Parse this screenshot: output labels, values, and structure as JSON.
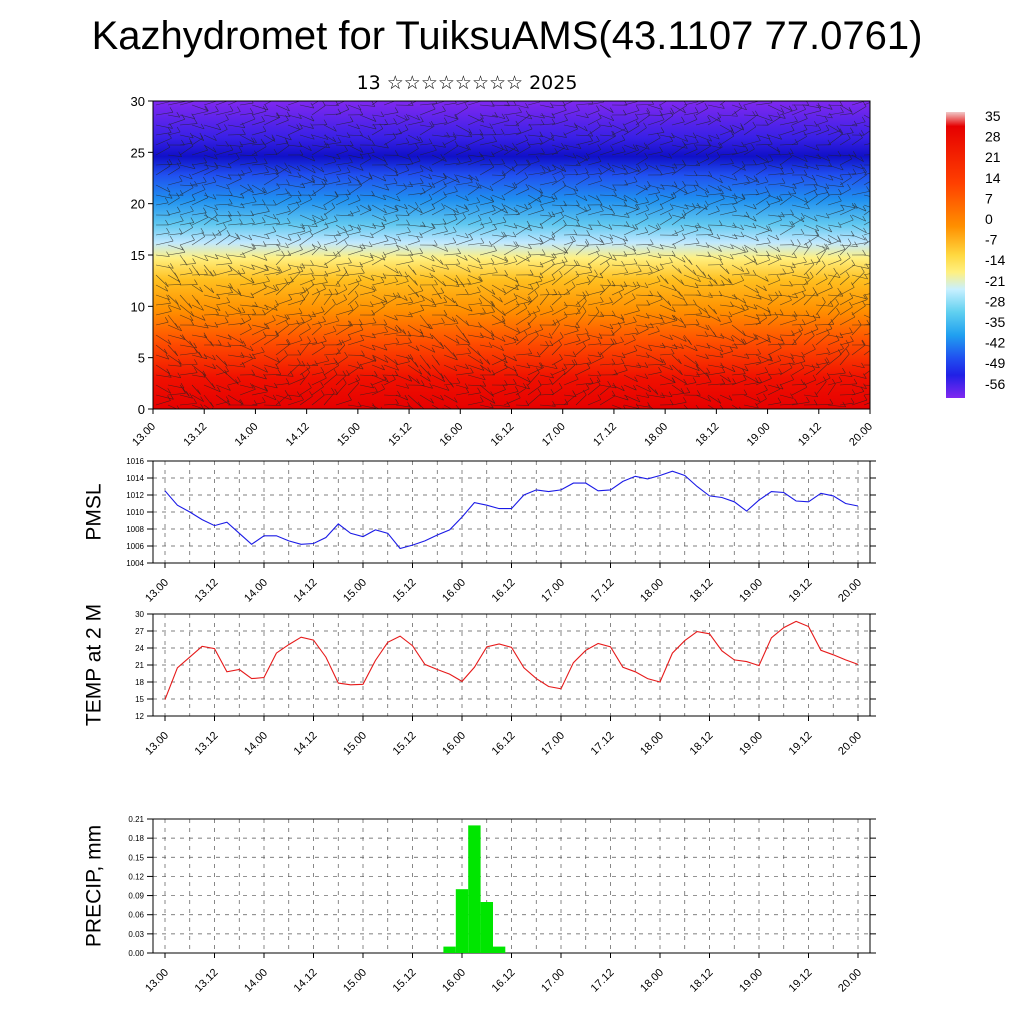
{
  "title": "Kazhydromet for TuiksuAMS(43.1107 77.0761)",
  "subtitle": "13 ☆☆☆☆☆☆☆☆ 2025",
  "time_labels": [
    "13.00",
    "13.12",
    "14.00",
    "14.12",
    "15.00",
    "15.12",
    "16.00",
    "16.12",
    "17.00",
    "17.12",
    "18.00",
    "18.12",
    "19.00",
    "19.12",
    "20.00"
  ],
  "colors": {
    "pmsl_line": "#1a1ae6",
    "temp_line": "#e61a1a",
    "precip_bar": "#00e600",
    "grid": "#555555"
  },
  "colorbar": {
    "labels": [
      "35",
      "28",
      "21",
      "14",
      "7",
      "0",
      "-7",
      "-14",
      "-21",
      "-28",
      "-35",
      "-42",
      "-49",
      "-56"
    ],
    "stops": [
      "#f0c8c8",
      "#e60000",
      "#ff4000",
      "#ff8000",
      "#ffb000",
      "#ffd840",
      "#fff080",
      "#c8f0ff",
      "#60d0f0",
      "#20a0f0",
      "#2060f0",
      "#2020e6",
      "#4020f0",
      "#8028f0"
    ]
  },
  "chart_data": [
    {
      "type": "heatmap",
      "ylim": [
        0,
        30
      ],
      "y_ticks": [
        0,
        5,
        10,
        15,
        20,
        25,
        30
      ],
      "x": [
        "13.00",
        "13.12",
        "14.00",
        "14.12",
        "15.00",
        "15.12",
        "16.00",
        "16.12",
        "17.00",
        "17.12",
        "18.00",
        "18.12",
        "19.00",
        "19.12",
        "20.00"
      ]
    },
    {
      "type": "line",
      "ylabel": "PMSL",
      "ylim": [
        1004,
        1016
      ],
      "y_ticks": [
        1004,
        1006,
        1008,
        1010,
        1012,
        1014,
        1016
      ],
      "x": [
        0,
        3,
        6,
        9,
        12,
        15,
        18,
        21,
        24,
        27,
        30,
        33,
        36,
        39,
        42,
        45,
        48,
        51,
        54,
        57,
        60,
        63,
        66,
        69,
        72,
        75,
        78,
        81,
        84,
        87,
        90,
        93,
        96,
        99,
        102,
        105,
        108,
        111,
        114,
        117,
        120,
        123,
        126,
        129,
        132,
        135,
        138,
        141,
        144,
        147,
        150,
        153,
        156,
        159,
        162,
        165,
        168
      ],
      "values": [
        1012.5,
        1010.8,
        1010.0,
        1009.1,
        1008.4,
        1008.8,
        1007.5,
        1006.2,
        1007.2,
        1007.2,
        1006.6,
        1006.2,
        1006.3,
        1007.0,
        1008.6,
        1007.5,
        1007.1,
        1007.9,
        1007.5,
        1005.7,
        1006.1,
        1006.6,
        1007.3,
        1007.9,
        1009.4,
        1011.1,
        1010.8,
        1010.4,
        1010.4,
        1012.0,
        1012.6,
        1012.4,
        1012.6,
        1013.4,
        1013.4,
        1012.5,
        1012.6,
        1013.6,
        1014.2,
        1013.9,
        1014.3,
        1014.8,
        1014.3,
        1013.0,
        1011.9,
        1011.7,
        1011.2,
        1010.1,
        1011.4,
        1012.4,
        1012.3,
        1011.3,
        1011.2,
        1012.2,
        1011.9,
        1011.0,
        1010.7
      ]
    },
    {
      "type": "line",
      "ylabel": "TEMP at 2 M",
      "ylim": [
        12,
        30
      ],
      "y_ticks": [
        12,
        15,
        18,
        21,
        24,
        27,
        30
      ],
      "x": [
        0,
        3,
        6,
        9,
        12,
        15,
        18,
        21,
        24,
        27,
        30,
        33,
        36,
        39,
        42,
        45,
        48,
        51,
        54,
        57,
        60,
        63,
        66,
        69,
        72,
        75,
        78,
        81,
        84,
        87,
        90,
        93,
        96,
        99,
        102,
        105,
        108,
        111,
        114,
        117,
        120,
        123,
        126,
        129,
        132,
        135,
        138,
        141,
        144,
        147,
        150,
        153,
        156,
        159,
        162,
        165,
        168
      ],
      "values": [
        14.9,
        20.5,
        22.4,
        24.3,
        23.9,
        19.8,
        20.2,
        18.6,
        18.8,
        23.1,
        24.6,
        25.9,
        25.4,
        22.4,
        17.8,
        17.5,
        17.6,
        21.8,
        25.0,
        26.1,
        24.4,
        21.1,
        20.2,
        19.4,
        18.1,
        20.6,
        24.2,
        24.7,
        24.1,
        20.5,
        18.6,
        17.2,
        16.8,
        21.4,
        23.6,
        24.8,
        24.2,
        20.6,
        19.8,
        18.6,
        18.0,
        23.1,
        25.3,
        26.9,
        26.5,
        23.5,
        21.9,
        21.6,
        20.9,
        25.8,
        27.6,
        28.7,
        27.8,
        23.6,
        22.8,
        21.9,
        21.1
      ]
    },
    {
      "type": "bar",
      "ylabel": "PRECIP, mm",
      "ylim": [
        0,
        0.21
      ],
      "y_ticks": [
        0.0,
        0.03,
        0.06,
        0.09,
        0.12,
        0.15,
        0.18,
        0.21
      ],
      "x": [
        69,
        72,
        75,
        78,
        81,
        84
      ],
      "values": [
        0.01,
        0.1,
        0.2,
        0.08,
        0.01,
        0.0
      ]
    }
  ]
}
